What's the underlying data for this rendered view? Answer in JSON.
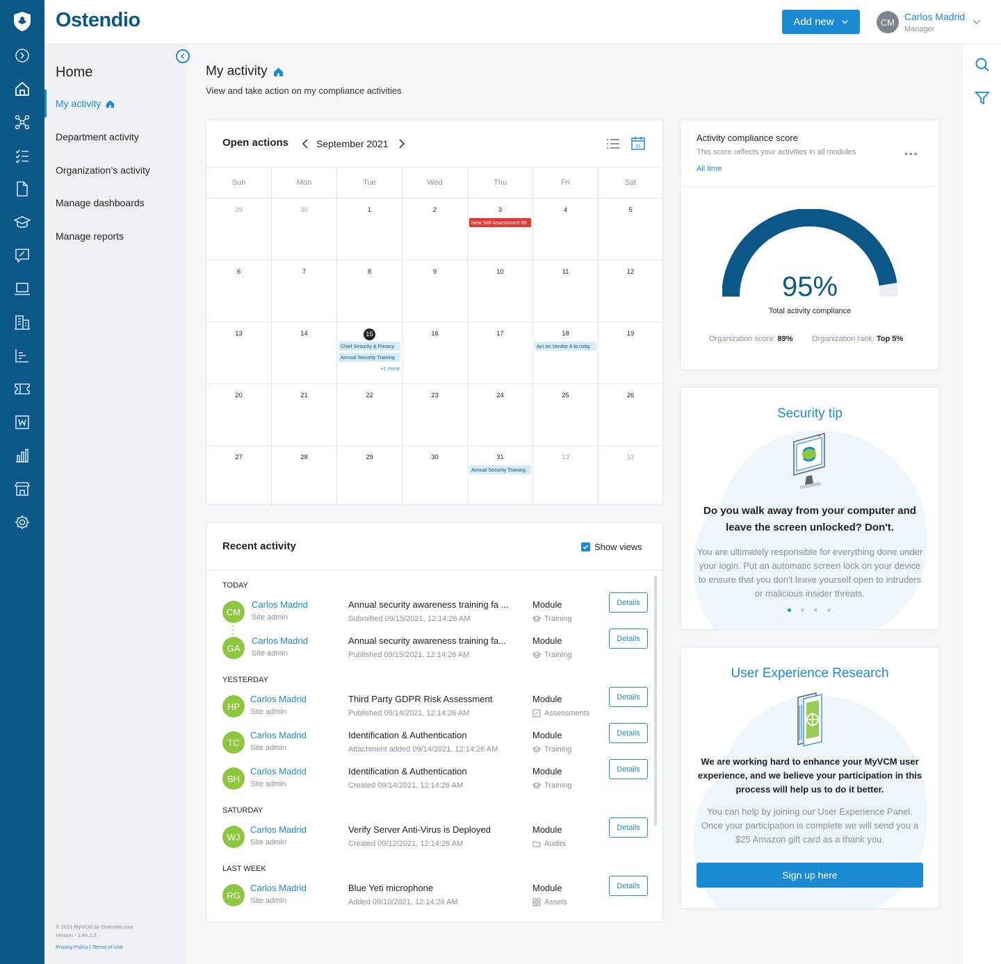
{
  "brand": {
    "name": "Ostendio"
  },
  "topbar": {
    "add_new": "Add new",
    "user_initials": "CM",
    "user_name": "Carlos Madrid",
    "user_role": "Manager"
  },
  "sidebar": {
    "title": "Home",
    "items": [
      {
        "label": "My activity",
        "active": true
      },
      {
        "label": "Department activity"
      },
      {
        "label": "Organization’s activity"
      },
      {
        "label": "Manage dashboards"
      },
      {
        "label": "Manage reports"
      }
    ],
    "footer_line1": "© 2021 MyVCM by Ostendio.com",
    "footer_line2": "Version - 2.44.1.3",
    "footer_links": "Privacy Policy | Terms of Use"
  },
  "rail_icons": [
    "shield-logo-icon",
    "arrow-circle-icon",
    "home-icon",
    "network-icon",
    "checklist-icon",
    "document-icon",
    "graduation-cap-icon",
    "edit-note-icon",
    "laptop-icon",
    "building-icon",
    "bar-list-icon",
    "ticket-icon",
    "wiki-icon",
    "chart-icon",
    "store-icon",
    "gear-icon"
  ],
  "page": {
    "title": "My activity",
    "subtitle": "View and take action on my compliance activities"
  },
  "calendar": {
    "title": "Open actions",
    "month": "September 2021",
    "days": [
      "Sun",
      "Mon",
      "Tue",
      "Wed",
      "Thu",
      "Fri",
      "Sat"
    ],
    "weeks": [
      [
        {
          "d": "29",
          "muted": true
        },
        {
          "d": "30",
          "muted": true
        },
        {
          "d": "1"
        },
        {
          "d": "2"
        },
        {
          "d": "3",
          "events": [
            {
              "t": "New Self Assessment 09",
              "c": "red"
            }
          ]
        },
        {
          "d": "4"
        },
        {
          "d": "5"
        }
      ],
      [
        {
          "d": "6"
        },
        {
          "d": "7"
        },
        {
          "d": "8"
        },
        {
          "d": "9"
        },
        {
          "d": "10"
        },
        {
          "d": "11"
        },
        {
          "d": "12"
        }
      ],
      [
        {
          "d": "13"
        },
        {
          "d": "14"
        },
        {
          "d": "15",
          "today": true,
          "events": [
            {
              "t": "Chief Security & Privacy",
              "c": "blue"
            },
            {
              "t": "Annual Security Training",
              "c": "blue"
            }
          ],
          "more": "+1 more"
        },
        {
          "d": "16"
        },
        {
          "d": "17"
        },
        {
          "d": "18",
          "events": [
            {
              "t": "Act on Vendor A to mitig",
              "c": "blue"
            }
          ]
        },
        {
          "d": "19"
        }
      ],
      [
        {
          "d": "20"
        },
        {
          "d": "21"
        },
        {
          "d": "22"
        },
        {
          "d": "23"
        },
        {
          "d": "24"
        },
        {
          "d": "25"
        },
        {
          "d": "26"
        }
      ],
      [
        {
          "d": "27"
        },
        {
          "d": "28"
        },
        {
          "d": "29"
        },
        {
          "d": "30"
        },
        {
          "d": "31",
          "events": [
            {
              "t": "Annual Security Training",
              "c": "blue"
            }
          ]
        },
        {
          "d": "13",
          "muted": true
        },
        {
          "d": "13",
          "muted": true
        }
      ]
    ]
  },
  "recent": {
    "title": "Recent activity",
    "show_views": "Show views",
    "details_label": "Details",
    "groups": [
      {
        "label": "TODAY",
        "items": [
          {
            "initials": "CM",
            "name": "Carlos Madrid",
            "role": "Site admin",
            "title": "Annual security awareness training fa ...",
            "sub": "Submitted 09/15/2021, 12:14:26 AM",
            "kind": "Module",
            "module": "Training",
            "icon": "graduation-cap"
          },
          {
            "initials": "GA",
            "name": "Carlos Madrid",
            "role": "Site admin",
            "title": "Annual security awareness training fa...",
            "sub": "Published 09/15/2021, 12:14:26 AM",
            "kind": "Module",
            "module": "Training",
            "icon": "graduation-cap"
          }
        ]
      },
      {
        "label": "YESTERDAY",
        "items": [
          {
            "initials": "HP",
            "name": "Carlos Madrid",
            "role": "Site admin",
            "title": "Third Party GDPR Risk Assessment",
            "sub": "Published 09/14/2021, 12:14:26 AM",
            "kind": "Module",
            "module": "Assessments",
            "icon": "edit-note"
          },
          {
            "initials": "TC",
            "name": "Carlos Madrid",
            "role": "Site admin",
            "title": "Identification & Authentication",
            "sub": "Attachment added 09/14/2021, 12:14:26 AM",
            "kind": "Module",
            "module": "Training",
            "icon": "graduation-cap"
          },
          {
            "initials": "BH",
            "name": "Carlos Madrid",
            "role": "Site admin",
            "title": "Identification & Authentication",
            "sub": "Created 09/14/2021, 12:14:26 AM",
            "kind": "Module",
            "module": "Training",
            "icon": "graduation-cap"
          }
        ]
      },
      {
        "label": "SATURDAY",
        "items": [
          {
            "initials": "WJ",
            "name": "Carlos Madrid",
            "role": "Site admin",
            "title": "Verify Server Anti-Virus is Deployed",
            "sub": "Created 09/12/2021, 12:14:26 AM",
            "kind": "Module",
            "module": "Audits",
            "icon": "folder"
          }
        ]
      },
      {
        "label": "LAST WEEK",
        "items": [
          {
            "initials": "RG",
            "name": "Carlos Madrid",
            "role": "Site admin",
            "title": "Blue Yeti microphone",
            "sub": "Added 09/10/2021, 12:14:26 AM",
            "kind": "Module",
            "module": "Assets",
            "icon": "grid"
          }
        ]
      }
    ]
  },
  "score": {
    "title": "Activity compliance score",
    "subtitle": "This score reflects your activities in all modules",
    "range": "All time",
    "percent": 95,
    "percent_label": "95%",
    "caption": "Total activity compliance",
    "org_label": "Organization score:",
    "org_value": "89%",
    "rank_label": "Organization rank:",
    "rank_value": "Top 5%"
  },
  "tip": {
    "title": "Security tip",
    "question": "Do you walk away from your computer and leave the screen unlocked? Don't.",
    "body": "You are ultimately responsible for everything done under your login. Put an automatic screen lock on your device to ensure that you don't leave yourself open to intruders or malicious insider threats."
  },
  "uxr": {
    "title": "User Experience Research",
    "lead": "We are working hard to enhance your MyVCM user experience, and we believe your participation in this process will help us to do it better.",
    "body": "You can help by joining our User Experience Panel. Once your participation is complete we will send you a $25 Amazon gift card as a thank you.",
    "button": "Sign up here"
  },
  "colors": {
    "rail": "#0b5888",
    "accent": "#1a8ad3",
    "avatar_green": "#8dc63f",
    "event_red": "#e53935"
  }
}
